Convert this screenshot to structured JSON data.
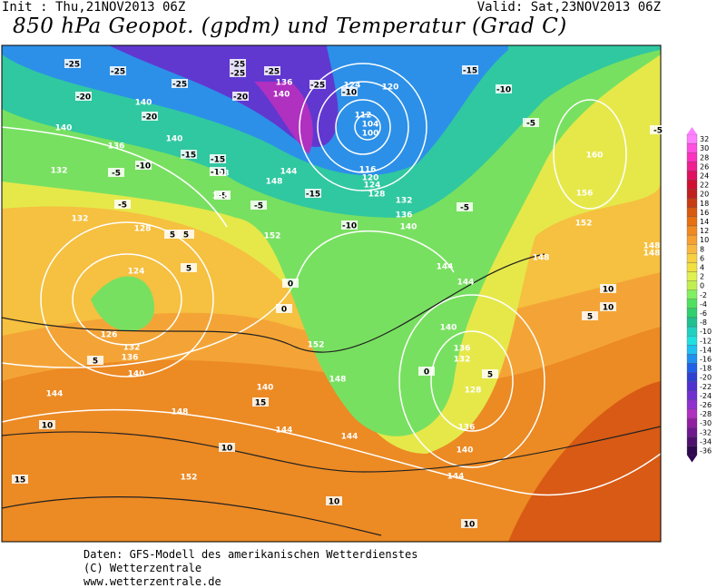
{
  "header": {
    "init": "Init : Thu,21NOV2013 06Z",
    "valid": "Valid: Sat,23NOV2013 06Z",
    "title": "850 hPa Geopot. (gpdm) und Temperatur (Grad C)"
  },
  "contour_labels": [
    "-25",
    "-25",
    "-25",
    "-25",
    "-25",
    "-25",
    "-25",
    "-20",
    "-20",
    "-20",
    "-15",
    "-15",
    "-15",
    "-15",
    "-10",
    "-10",
    "-10",
    "-10",
    "-10",
    "-5",
    "-5",
    "-5",
    "-5",
    "-5",
    "-5",
    "-5",
    "0",
    "0",
    "0",
    "5",
    "5",
    "5",
    "5",
    "5",
    "5",
    "10",
    "10",
    "10",
    "10",
    "10",
    "10",
    "15",
    "15",
    "140",
    "140",
    "136",
    "132",
    "140",
    "136",
    "140",
    "124",
    "120",
    "112",
    "104",
    "100",
    "116",
    "120",
    "124",
    "128",
    "132",
    "136",
    "140",
    "148",
    "148",
    "144",
    "148",
    "132",
    "128",
    "124",
    "152",
    "152",
    "148",
    "144",
    "144",
    "140",
    "136",
    "132",
    "128",
    "136",
    "140",
    "144",
    "126",
    "132",
    "136",
    "140",
    "144",
    "148",
    "140",
    "144",
    "144",
    "152",
    "160",
    "156",
    "152",
    "148",
    "148",
    "148"
  ],
  "colorbar": {
    "values": [
      32,
      30,
      28,
      26,
      24,
      22,
      20,
      18,
      16,
      14,
      12,
      10,
      8,
      6,
      4,
      2,
      0,
      -2,
      -4,
      -6,
      -8,
      -10,
      -12,
      -14,
      -16,
      -18,
      -20,
      -22,
      -24,
      -26,
      -28,
      -30,
      -32,
      -34,
      -36
    ],
    "colors": [
      "#ff80ff",
      "#ff50e0",
      "#ff30c0",
      "#f02090",
      "#e01060",
      "#d01030",
      "#c02020",
      "#c83c14",
      "#d85a10",
      "#e87010",
      "#f08a20",
      "#f5a030",
      "#f8b840",
      "#f8d040",
      "#f0e040",
      "#e0f050",
      "#c0f050",
      "#80f060",
      "#50e060",
      "#30d070",
      "#20c090",
      "#20d0c0",
      "#20e0e0",
      "#20c0f0",
      "#2090f0",
      "#2060e8",
      "#3040d0",
      "#5030d0",
      "#7030d0",
      "#9030d0",
      "#b030c0",
      "#9020a0",
      "#701890",
      "#501070",
      "#300850"
    ]
  },
  "footer": [
    "Daten: GFS-Modell des amerikanischen Wetterdienstes",
    "(C) Wetterzentrale",
    "www.wetterzentrale.de"
  ]
}
